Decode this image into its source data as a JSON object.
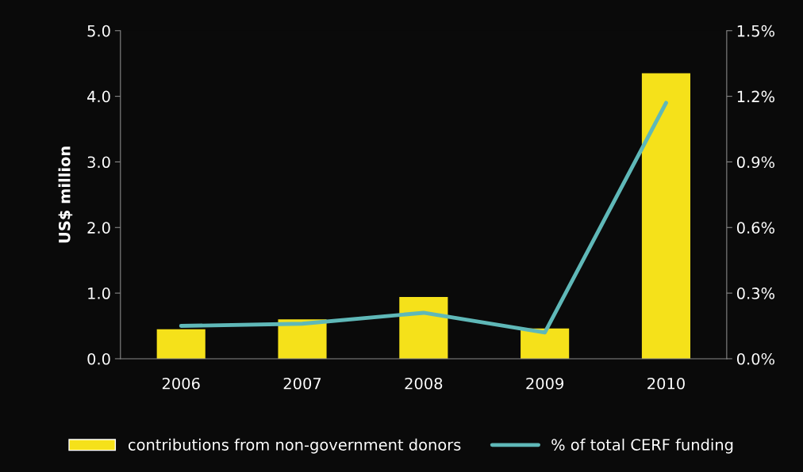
{
  "chart_data": {
    "type": "bar",
    "ylabel": "US$ million",
    "categories": [
      "2006",
      "2007",
      "2008",
      "2009",
      "2010"
    ],
    "series": [
      {
        "name": "contributions from non-government donors",
        "color": "#f5e11a",
        "values": [
          0.45,
          0.6,
          0.94,
          0.46,
          4.35
        ]
      },
      {
        "name": "% of total CERF funding",
        "type": "line",
        "axis": "y2",
        "color": "#5fb8b8",
        "values": [
          0.15,
          0.16,
          0.21,
          0.12,
          1.17
        ]
      }
    ],
    "ylim": [
      0,
      5
    ],
    "yticks": [
      {
        "value": 0,
        "label": "0.0"
      },
      {
        "value": 1,
        "label": "1.0"
      },
      {
        "value": 2,
        "label": "2.0"
      },
      {
        "value": 3,
        "label": "3.0"
      },
      {
        "value": 4,
        "label": "4.0"
      },
      {
        "value": 5,
        "label": "5.0"
      }
    ],
    "y2lim": [
      0,
      1.5
    ],
    "y2ticks": [
      {
        "value": 0,
        "label": "0.0%"
      },
      {
        "value": 0.3,
        "label": "0.3%"
      },
      {
        "value": 0.6,
        "label": "0.6%"
      },
      {
        "value": 0.9,
        "label": "0.9%"
      },
      {
        "value": 1.2,
        "label": "1.2%"
      },
      {
        "value": 1.5,
        "label": "1.5%"
      }
    ],
    "legend": "bottom",
    "marker": "none",
    "line_style": "solid"
  }
}
